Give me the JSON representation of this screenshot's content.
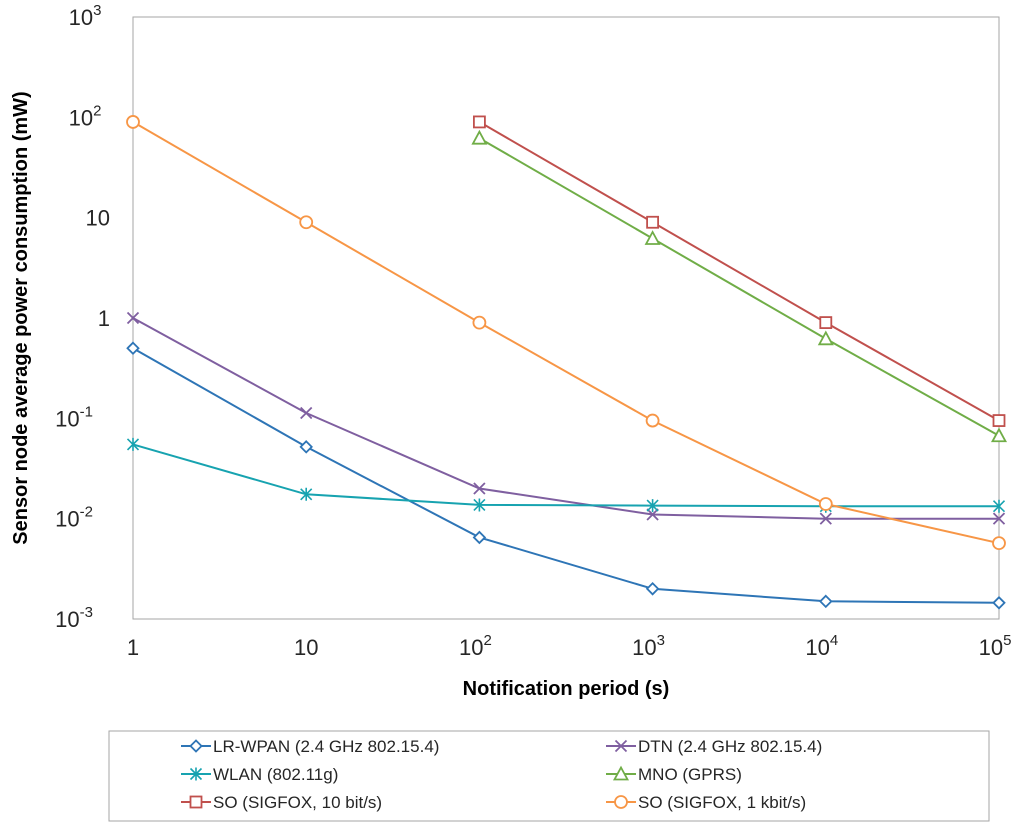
{
  "chart_data": {
    "type": "line",
    "x_scale": "log",
    "y_scale": "log",
    "xlabel": "Notification period (s)",
    "ylabel": "Sensor node average power consumption (mW)",
    "xlim": [
      1,
      100000
    ],
    "ylim": [
      0.001,
      1000
    ],
    "x_ticks": [
      {
        "value": 1,
        "base": "1",
        "exp": ""
      },
      {
        "value": 10,
        "base": "10",
        "exp": ""
      },
      {
        "value": 100,
        "base": "10",
        "exp": "2"
      },
      {
        "value": 1000,
        "base": "10",
        "exp": "3"
      },
      {
        "value": 10000,
        "base": "10",
        "exp": "4"
      },
      {
        "value": 100000,
        "base": "10",
        "exp": "5"
      }
    ],
    "y_ticks": [
      {
        "value": 1000,
        "base": "10",
        "exp": "3"
      },
      {
        "value": 100,
        "base": "10",
        "exp": "2"
      },
      {
        "value": 10,
        "base": "10",
        "exp": ""
      },
      {
        "value": 1,
        "base": "1",
        "exp": ""
      },
      {
        "value": 0.1,
        "base": "10",
        "exp": "-1"
      },
      {
        "value": 0.01,
        "base": "10",
        "exp": "-2"
      },
      {
        "value": 0.001,
        "base": "10",
        "exp": "-3"
      }
    ],
    "legend_position": "bottom",
    "series": [
      {
        "name": "LR-WPAN (2.4 GHz 802.15.4)",
        "color": "#2e75b6",
        "marker": "diamond",
        "x": [
          1,
          10,
          100,
          1000,
          10000,
          100000
        ],
        "y": [
          0.5,
          0.052,
          0.0065,
          0.002,
          0.0015,
          0.00145
        ]
      },
      {
        "name": "DTN (2.4 GHz 802.15.4)",
        "color": "#7f5fa0",
        "marker": "x",
        "x": [
          1,
          10,
          100,
          1000,
          10000,
          100000
        ],
        "y": [
          1.0,
          0.113,
          0.02,
          0.011,
          0.01,
          0.01
        ]
      },
      {
        "name": "WLAN (802.11g)",
        "color": "#17a3b0",
        "marker": "asterisk",
        "x": [
          1,
          10,
          100,
          1000,
          10000,
          100000
        ],
        "y": [
          0.055,
          0.0175,
          0.0137,
          0.0135,
          0.0133,
          0.0133
        ]
      },
      {
        "name": "MNO (GPRS)",
        "color": "#70ad47",
        "marker": "triangle",
        "x": [
          100,
          1000,
          10000,
          100000
        ],
        "y": [
          62,
          6.2,
          0.62,
          0.067
        ]
      },
      {
        "name": "SO (SIGFOX, 10 bit/s)",
        "color": "#c0504d",
        "marker": "square",
        "x": [
          100,
          1000,
          10000,
          100000
        ],
        "y": [
          90,
          9,
          0.9,
          0.095
        ]
      },
      {
        "name": "SO (SIGFOX, 1 kbit/s)",
        "color": "#f79646",
        "marker": "circle",
        "x": [
          1,
          10,
          100,
          1000,
          10000,
          100000
        ],
        "y": [
          90,
          9,
          0.9,
          0.095,
          0.014,
          0.0057
        ]
      }
    ]
  }
}
